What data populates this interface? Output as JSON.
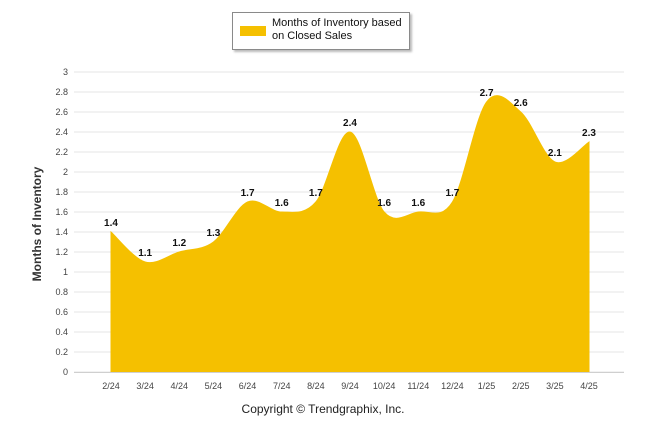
{
  "legend": {
    "label": "Months of Inventory based on Closed Sales",
    "color": "#F5C000"
  },
  "footer": {
    "copyright": "Copyright © Trendgraphix, Inc."
  },
  "chart_data": {
    "type": "area",
    "categories": [
      "2/24",
      "3/24",
      "4/24",
      "5/24",
      "6/24",
      "7/24",
      "8/24",
      "9/24",
      "10/24",
      "11/24",
      "12/24",
      "1/25",
      "2/25",
      "3/25",
      "4/25"
    ],
    "series": [
      {
        "name": "Months of Inventory based on Closed Sales",
        "values": [
          1.4,
          1.1,
          1.2,
          1.3,
          1.7,
          1.6,
          1.7,
          2.4,
          1.6,
          1.6,
          1.7,
          2.7,
          2.6,
          2.1,
          2.3
        ],
        "labels": [
          "1.4",
          "1.1",
          "1.2",
          "1.3",
          "1.7",
          "1.6",
          "1.7",
          "2.4",
          "1.6",
          "1.6",
          "1.7",
          "2.7",
          "2.6",
          "2.1",
          "2.3"
        ]
      }
    ],
    "ylabel": "Months of Inventory",
    "xlabel": "",
    "ylim": [
      0,
      3
    ],
    "yticks": [
      0,
      0.2,
      0.4,
      0.6,
      0.8,
      1,
      1.2,
      1.4,
      1.6,
      1.8,
      2,
      2.2,
      2.4,
      2.6,
      2.8,
      3
    ],
    "ytick_labels": [
      "0",
      "0.2",
      "0.4",
      "0.6",
      "0.8",
      "1",
      "1.2",
      "1.4",
      "1.6",
      "1.8",
      "2",
      "2.2",
      "2.4",
      "2.6",
      "2.8",
      "3"
    ],
    "grid": true,
    "legend_position": "top-center",
    "fill_color": "#F5C000"
  }
}
